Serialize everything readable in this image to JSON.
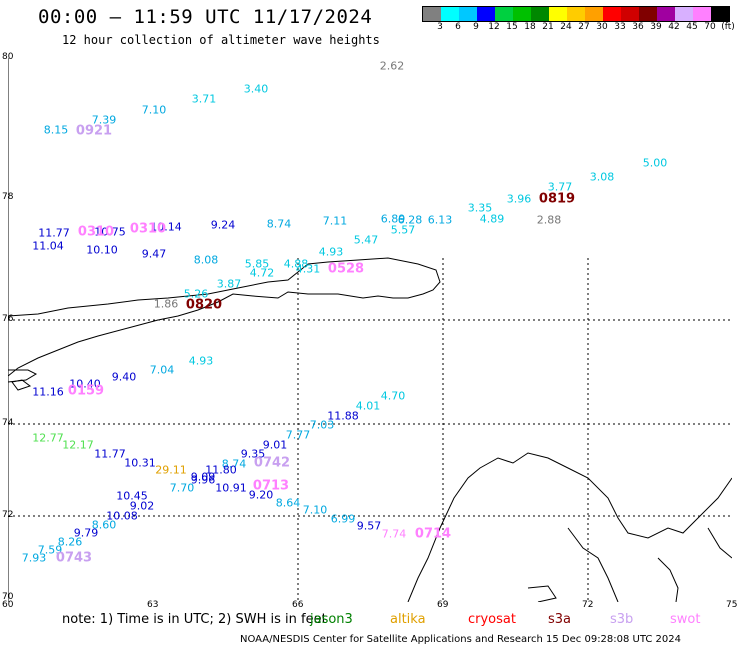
{
  "title": "00:00 – 11:59 UTC 11/17/2024",
  "subtitle": "12 hour collection of altimeter wave heights",
  "legend": {
    "colors": [
      "#808080",
      "#00ffff",
      "#00c8ff",
      "#0000ff",
      "#00d040",
      "#00c000",
      "#008800",
      "#ffff00",
      "#ffcc00",
      "#ffa000",
      "#ff0000",
      "#d00000",
      "#800000",
      "#a000a0",
      "#d8b0ff",
      "#ff80ff",
      "#000000"
    ],
    "labels": [
      "3",
      "6",
      "9",
      "12",
      "15",
      "18",
      "21",
      "24",
      "27",
      "30",
      "33",
      "36",
      "39",
      "42",
      "45",
      "70",
      "(ft)"
    ]
  },
  "map": {
    "lat_labels": [
      "80",
      "78",
      "76",
      "74",
      "72",
      "70"
    ],
    "lon_labels": [
      "60",
      "63",
      "66",
      "69",
      "72",
      "75"
    ],
    "wave_heights": [
      {
        "v": "2.62",
        "c": "#777777"
      },
      {
        "v": "3.40",
        "c": "#00c8e0"
      },
      {
        "v": "3.71",
        "c": "#00c8e0"
      },
      {
        "v": "7.10",
        "c": "#00a8e0"
      },
      {
        "v": "7.39",
        "c": "#00a8e0"
      },
      {
        "v": "8.15",
        "c": "#00a8e0"
      },
      {
        "v": "5.00",
        "c": "#00c8e0"
      },
      {
        "v": "3.08",
        "c": "#00c8e0"
      },
      {
        "v": "3.77",
        "c": "#00c8e0"
      },
      {
        "v": "3.96",
        "c": "#00c8e0"
      },
      {
        "v": "3.35",
        "c": "#00c8e0"
      },
      {
        "v": "4.89",
        "c": "#00c8e0"
      },
      {
        "v": "2.88",
        "c": "#777777"
      },
      {
        "v": "6.13",
        "c": "#00a8e0"
      },
      {
        "v": "6.28",
        "c": "#00a8e0"
      },
      {
        "v": "6.89",
        "c": "#00a8e0"
      },
      {
        "v": "5.57",
        "c": "#00c8e0"
      },
      {
        "v": "5.47",
        "c": "#00c8e0"
      },
      {
        "v": "7.11",
        "c": "#00a8e0"
      },
      {
        "v": "4.93",
        "c": "#00c8e0"
      },
      {
        "v": "8.74",
        "c": "#00a8e0"
      },
      {
        "v": "4.88",
        "c": "#00c8e0"
      },
      {
        "v": "4.31",
        "c": "#00c8e0"
      },
      {
        "v": "9.24",
        "c": "#0000d0"
      },
      {
        "v": "10.14",
        "c": "#0000d0"
      },
      {
        "v": "10.75",
        "c": "#0000d0"
      },
      {
        "v": "11.77",
        "c": "#0000d0"
      },
      {
        "v": "11.04",
        "c": "#0000d0"
      },
      {
        "v": "10.10",
        "c": "#0000d0"
      },
      {
        "v": "9.47",
        "c": "#0000d0"
      },
      {
        "v": "8.08",
        "c": "#00a8e0"
      },
      {
        "v": "5.85",
        "c": "#00c8e0"
      },
      {
        "v": "4.72",
        "c": "#00c8e0"
      },
      {
        "v": "3.87",
        "c": "#00c8e0"
      },
      {
        "v": "5.26",
        "c": "#00c8e0"
      },
      {
        "v": "1.86",
        "c": "#777777"
      },
      {
        "v": "7.04",
        "c": "#00a8e0"
      },
      {
        "v": "4.93",
        "c": "#00c8e0"
      },
      {
        "v": "9.40",
        "c": "#0000d0"
      },
      {
        "v": "10.40",
        "c": "#0000d0"
      },
      {
        "v": "11.16",
        "c": "#0000d0"
      },
      {
        "v": "4.70",
        "c": "#00c8e0"
      },
      {
        "v": "4.01",
        "c": "#00c8e0"
      },
      {
        "v": "11.88",
        "c": "#0000d0"
      },
      {
        "v": "7.03",
        "c": "#00a8e0"
      },
      {
        "v": "7.77",
        "c": "#00a8e0"
      },
      {
        "v": "9.01",
        "c": "#0000d0"
      },
      {
        "v": "9.35",
        "c": "#0000d0"
      },
      {
        "v": "8.74",
        "c": "#00a8e0"
      },
      {
        "v": "11.80",
        "c": "#0000d0"
      },
      {
        "v": "12.77",
        "c": "#50e050"
      },
      {
        "v": "12.17",
        "c": "#50e050"
      },
      {
        "v": "11.77",
        "c": "#0000d0"
      },
      {
        "v": "10.31",
        "c": "#0000d0"
      },
      {
        "v": "29.11",
        "c": "#e0a000"
      },
      {
        "v": "9.09",
        "c": "#0000d0"
      },
      {
        "v": "9.96",
        "c": "#0000d0"
      },
      {
        "v": "10.91",
        "c": "#0000d0"
      },
      {
        "v": "9.20",
        "c": "#0000d0"
      },
      {
        "v": "8.64",
        "c": "#00a8e0"
      },
      {
        "v": "7.70",
        "c": "#00a8e0"
      },
      {
        "v": "10.45",
        "c": "#0000d0"
      },
      {
        "v": "9.02",
        "c": "#0000d0"
      },
      {
        "v": "10.08",
        "c": "#0000d0"
      },
      {
        "v": "8.60",
        "c": "#00a8e0"
      },
      {
        "v": "9.79",
        "c": "#0000d0"
      },
      {
        "v": "8.26",
        "c": "#00a8e0"
      },
      {
        "v": "7.59",
        "c": "#00a8e0"
      },
      {
        "v": "7.93",
        "c": "#00a8e0"
      },
      {
        "v": "7.10",
        "c": "#00a8e0"
      },
      {
        "v": "6.99",
        "c": "#00a8e0"
      },
      {
        "v": "9.57",
        "c": "#0000d0"
      },
      {
        "v": "7.74",
        "c": "#ff80ff"
      }
    ],
    "hour_labels": [
      {
        "v": "0921",
        "c": "#c8a0f0"
      },
      {
        "v": "0819",
        "c": "#800000"
      },
      {
        "v": "0310",
        "c": "#ff80ff"
      },
      {
        "v": "0310",
        "c": "#ff80ff"
      },
      {
        "v": "0528",
        "c": "#ff80ff"
      },
      {
        "v": "0820",
        "c": "#800000"
      },
      {
        "v": "0159",
        "c": "#ff80ff"
      },
      {
        "v": "0742",
        "c": "#c8a0f0"
      },
      {
        "v": "0713",
        "c": "#ff80ff"
      },
      {
        "v": "0743",
        "c": "#c8a0f0"
      },
      {
        "v": "0714",
        "c": "#ff80ff"
      }
    ]
  },
  "footer": {
    "note": "note: 1) Time is in UTC; 2) SWH is in feet",
    "satellites": [
      {
        "name": "jason3",
        "c": "#008000"
      },
      {
        "name": "altika",
        "c": "#e0a000"
      },
      {
        "name": "cryosat",
        "c": "#ff0000"
      },
      {
        "name": "s3a",
        "c": "#800000"
      },
      {
        "name": "s3b",
        "c": "#c8a0f0"
      },
      {
        "name": "swot",
        "c": "#ff80ff"
      }
    ],
    "credit": "NOAA/NESDIS Center for Satellite Applications and Research    15 Dec 09:28:08 UTC 2024"
  }
}
